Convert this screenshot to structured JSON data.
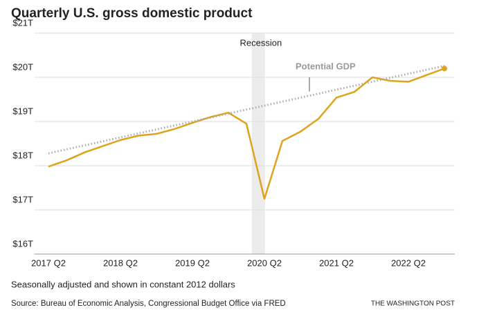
{
  "chart_data": {
    "type": "line",
    "title": "Quarterly U.S. gross domestic product",
    "categories": [
      "2017 Q2",
      null,
      null,
      null,
      "2018 Q2",
      null,
      null,
      null,
      "2019 Q2",
      null,
      null,
      null,
      "2020 Q2",
      null,
      null,
      null,
      "2021 Q2",
      null,
      null,
      null,
      "2022 Q2",
      null,
      null
    ],
    "series": [
      {
        "color": "#dea21b",
        "style": "solid",
        "values": [
          17.98,
          18.12,
          18.3,
          18.44,
          18.58,
          18.68,
          18.72,
          18.83,
          18.97,
          19.1,
          19.2,
          18.95,
          17.25,
          18.56,
          18.77,
          19.06,
          19.54,
          19.67,
          20.0,
          19.92,
          19.9,
          20.05,
          20.2
        ]
      },
      {
        "name": "Potential GDP",
        "color": "#aaaaaa",
        "style": "dotted",
        "values": [
          18.28,
          18.37,
          18.46,
          18.55,
          18.64,
          18.73,
          18.82,
          18.91,
          19.0,
          19.09,
          19.18,
          19.27,
          19.36,
          19.45,
          19.54,
          19.63,
          19.72,
          19.81,
          19.9,
          19.99,
          20.08,
          20.17,
          20.26
        ]
      }
    ],
    "ylim": [
      16,
      21
    ],
    "yticks": [
      {
        "value": 16,
        "label": "$16T"
      },
      {
        "value": 17,
        "label": "$17T"
      },
      {
        "value": 18,
        "label": "$18T"
      },
      {
        "value": 19,
        "label": "$19T"
      },
      {
        "value": 20,
        "label": "$20T"
      },
      {
        "value": 21,
        "label": "$21T"
      }
    ],
    "grid": true,
    "annotation": "Recession",
    "note": "Seasonally adjusted and shown in constant 2012 dollars",
    "source": "Source: Bureau of Economic Analysis, Congressional Budget Office via FRED",
    "credit": "THE WASHINGTON POST"
  }
}
